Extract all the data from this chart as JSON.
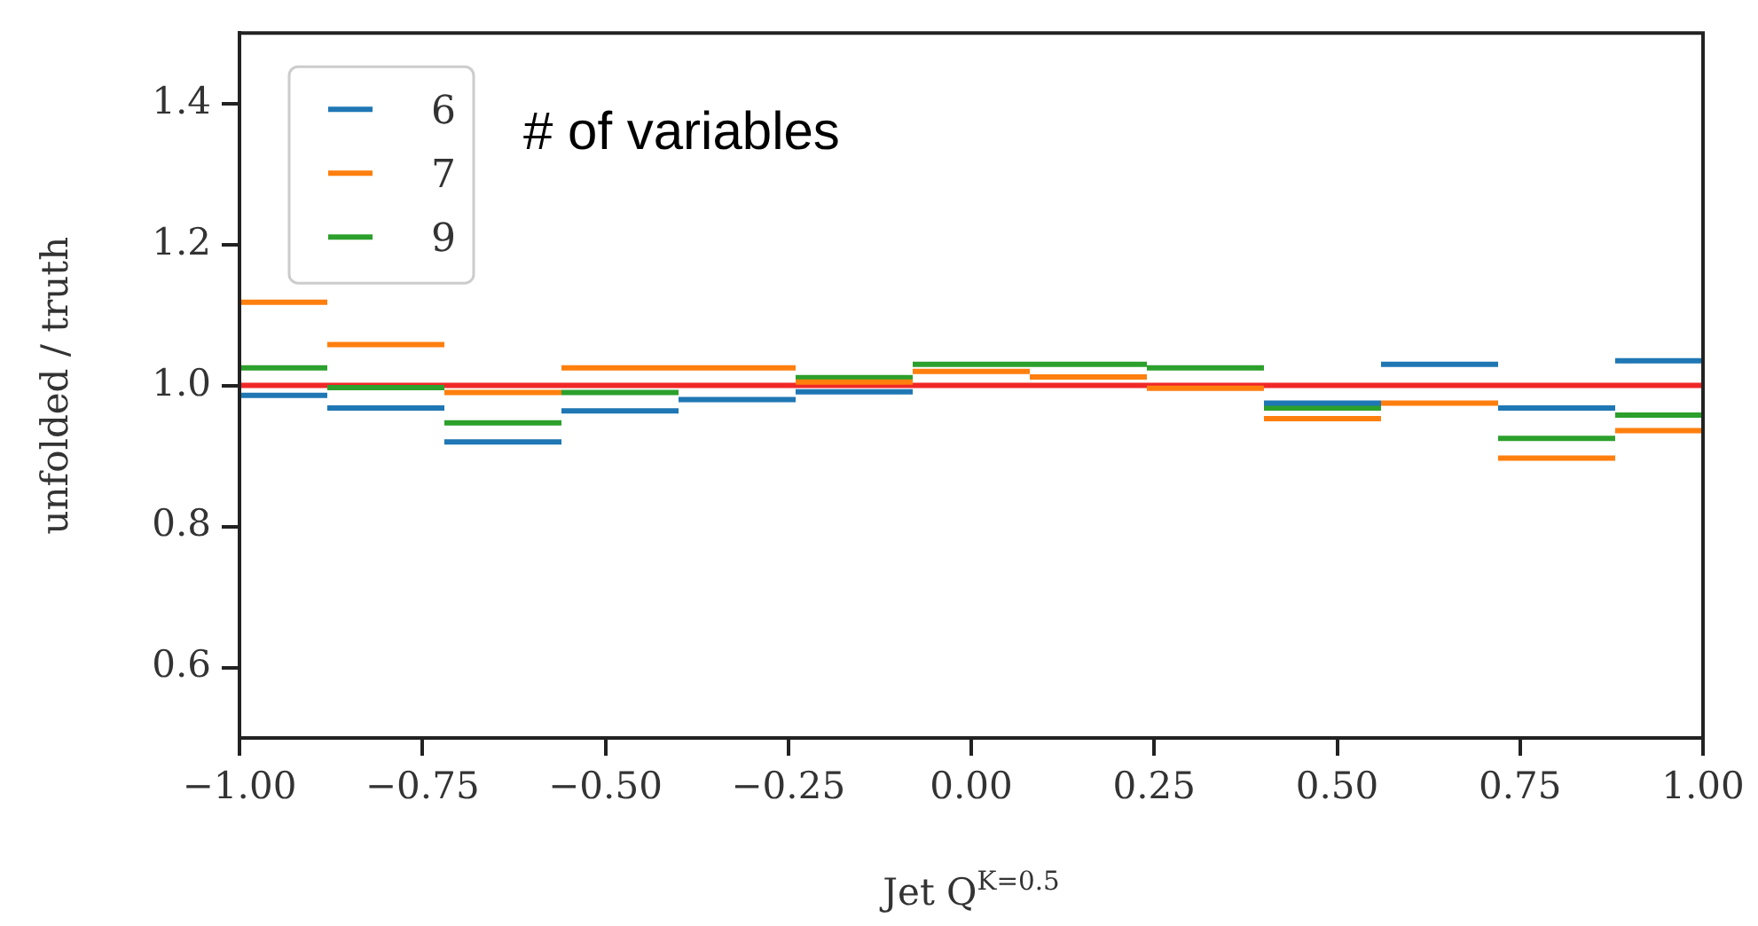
{
  "chart_data": {
    "type": "line",
    "marker": "none",
    "xlabel": "Jet Q$^{K=0.5}$",
    "ylabel": "unfolded / truth",
    "legend_title": "# of variables",
    "legend": "top left",
    "grid": false,
    "x": [
      -1,
      -0.88,
      null,
      -0.88,
      -0.72,
      null,
      -0.72,
      -0.56,
      null,
      -0.56,
      -0.4,
      null,
      -0.4,
      -0.24,
      null,
      -0.24,
      -0.08,
      null,
      -0.08,
      0.08,
      null,
      0.08,
      0.24,
      null,
      0.24,
      0.4,
      null,
      0.4,
      0.56,
      null,
      0.56,
      0.72,
      null,
      0.72,
      0.88,
      null,
      0.88,
      1
    ],
    "series": [
      {
        "name": "6",
        "color": "#1f77b4",
        "values": [
          0.986,
          0.986,
          null,
          0.968,
          0.968,
          null,
          0.92,
          0.92,
          null,
          0.964,
          0.964,
          null,
          0.98,
          0.98,
          null,
          0.991,
          0.991,
          null,
          null,
          null,
          null,
          null,
          null,
          null,
          null,
          null,
          null,
          0.975,
          0.975,
          null,
          1.03,
          1.03,
          null,
          0.968,
          0.968,
          null,
          1.035,
          1.035
        ]
      },
      {
        "name": "7",
        "color": "#ff7f0e",
        "values": [
          1.118,
          1.118,
          null,
          1.058,
          1.058,
          null,
          0.99,
          0.99,
          null,
          1.025,
          1.025,
          null,
          1.025,
          1.025,
          null,
          1.005,
          1.005,
          null,
          1.02,
          1.02,
          null,
          1.012,
          1.012,
          null,
          0.996,
          0.996,
          null,
          0.953,
          0.953,
          null,
          0.975,
          0.975,
          null,
          0.897,
          0.897,
          null,
          0.936,
          0.936
        ]
      },
      {
        "name": "9",
        "color": "#2ca02c",
        "values": [
          1.025,
          1.025,
          null,
          0.997,
          0.997,
          null,
          0.947,
          0.947,
          null,
          0.99,
          0.99,
          null,
          null,
          null,
          null,
          1.011,
          1.011,
          null,
          1.03,
          1.03,
          null,
          1.03,
          1.03,
          null,
          1.025,
          1.025,
          null,
          0.968,
          0.968,
          null,
          null,
          null,
          null,
          0.925,
          0.925,
          null,
          0.958,
          0.958
        ]
      }
    ],
    "ref_lines": [
      {
        "axis": "y",
        "value": 1,
        "color": "#f02828"
      }
    ],
    "xlim": [
      -1,
      1
    ],
    "ylim": [
      0.5,
      1.5
    ],
    "xticks": [
      {
        "value": -1,
        "label": "−1.00"
      },
      {
        "value": -0.75,
        "label": "−0.75"
      },
      {
        "value": -0.5,
        "label": "−0.50"
      },
      {
        "value": -0.25,
        "label": "−0.25"
      },
      {
        "value": 0,
        "label": "0.00"
      },
      {
        "value": 0.25,
        "label": "0.25"
      },
      {
        "value": 0.5,
        "label": "0.50"
      },
      {
        "value": 0.75,
        "label": "0.75"
      },
      {
        "value": 1,
        "label": "1.00"
      }
    ],
    "yticks": [
      0.6,
      0.8,
      {
        "value": 1,
        "label": "1.0"
      },
      1.2,
      1.4
    ]
  }
}
